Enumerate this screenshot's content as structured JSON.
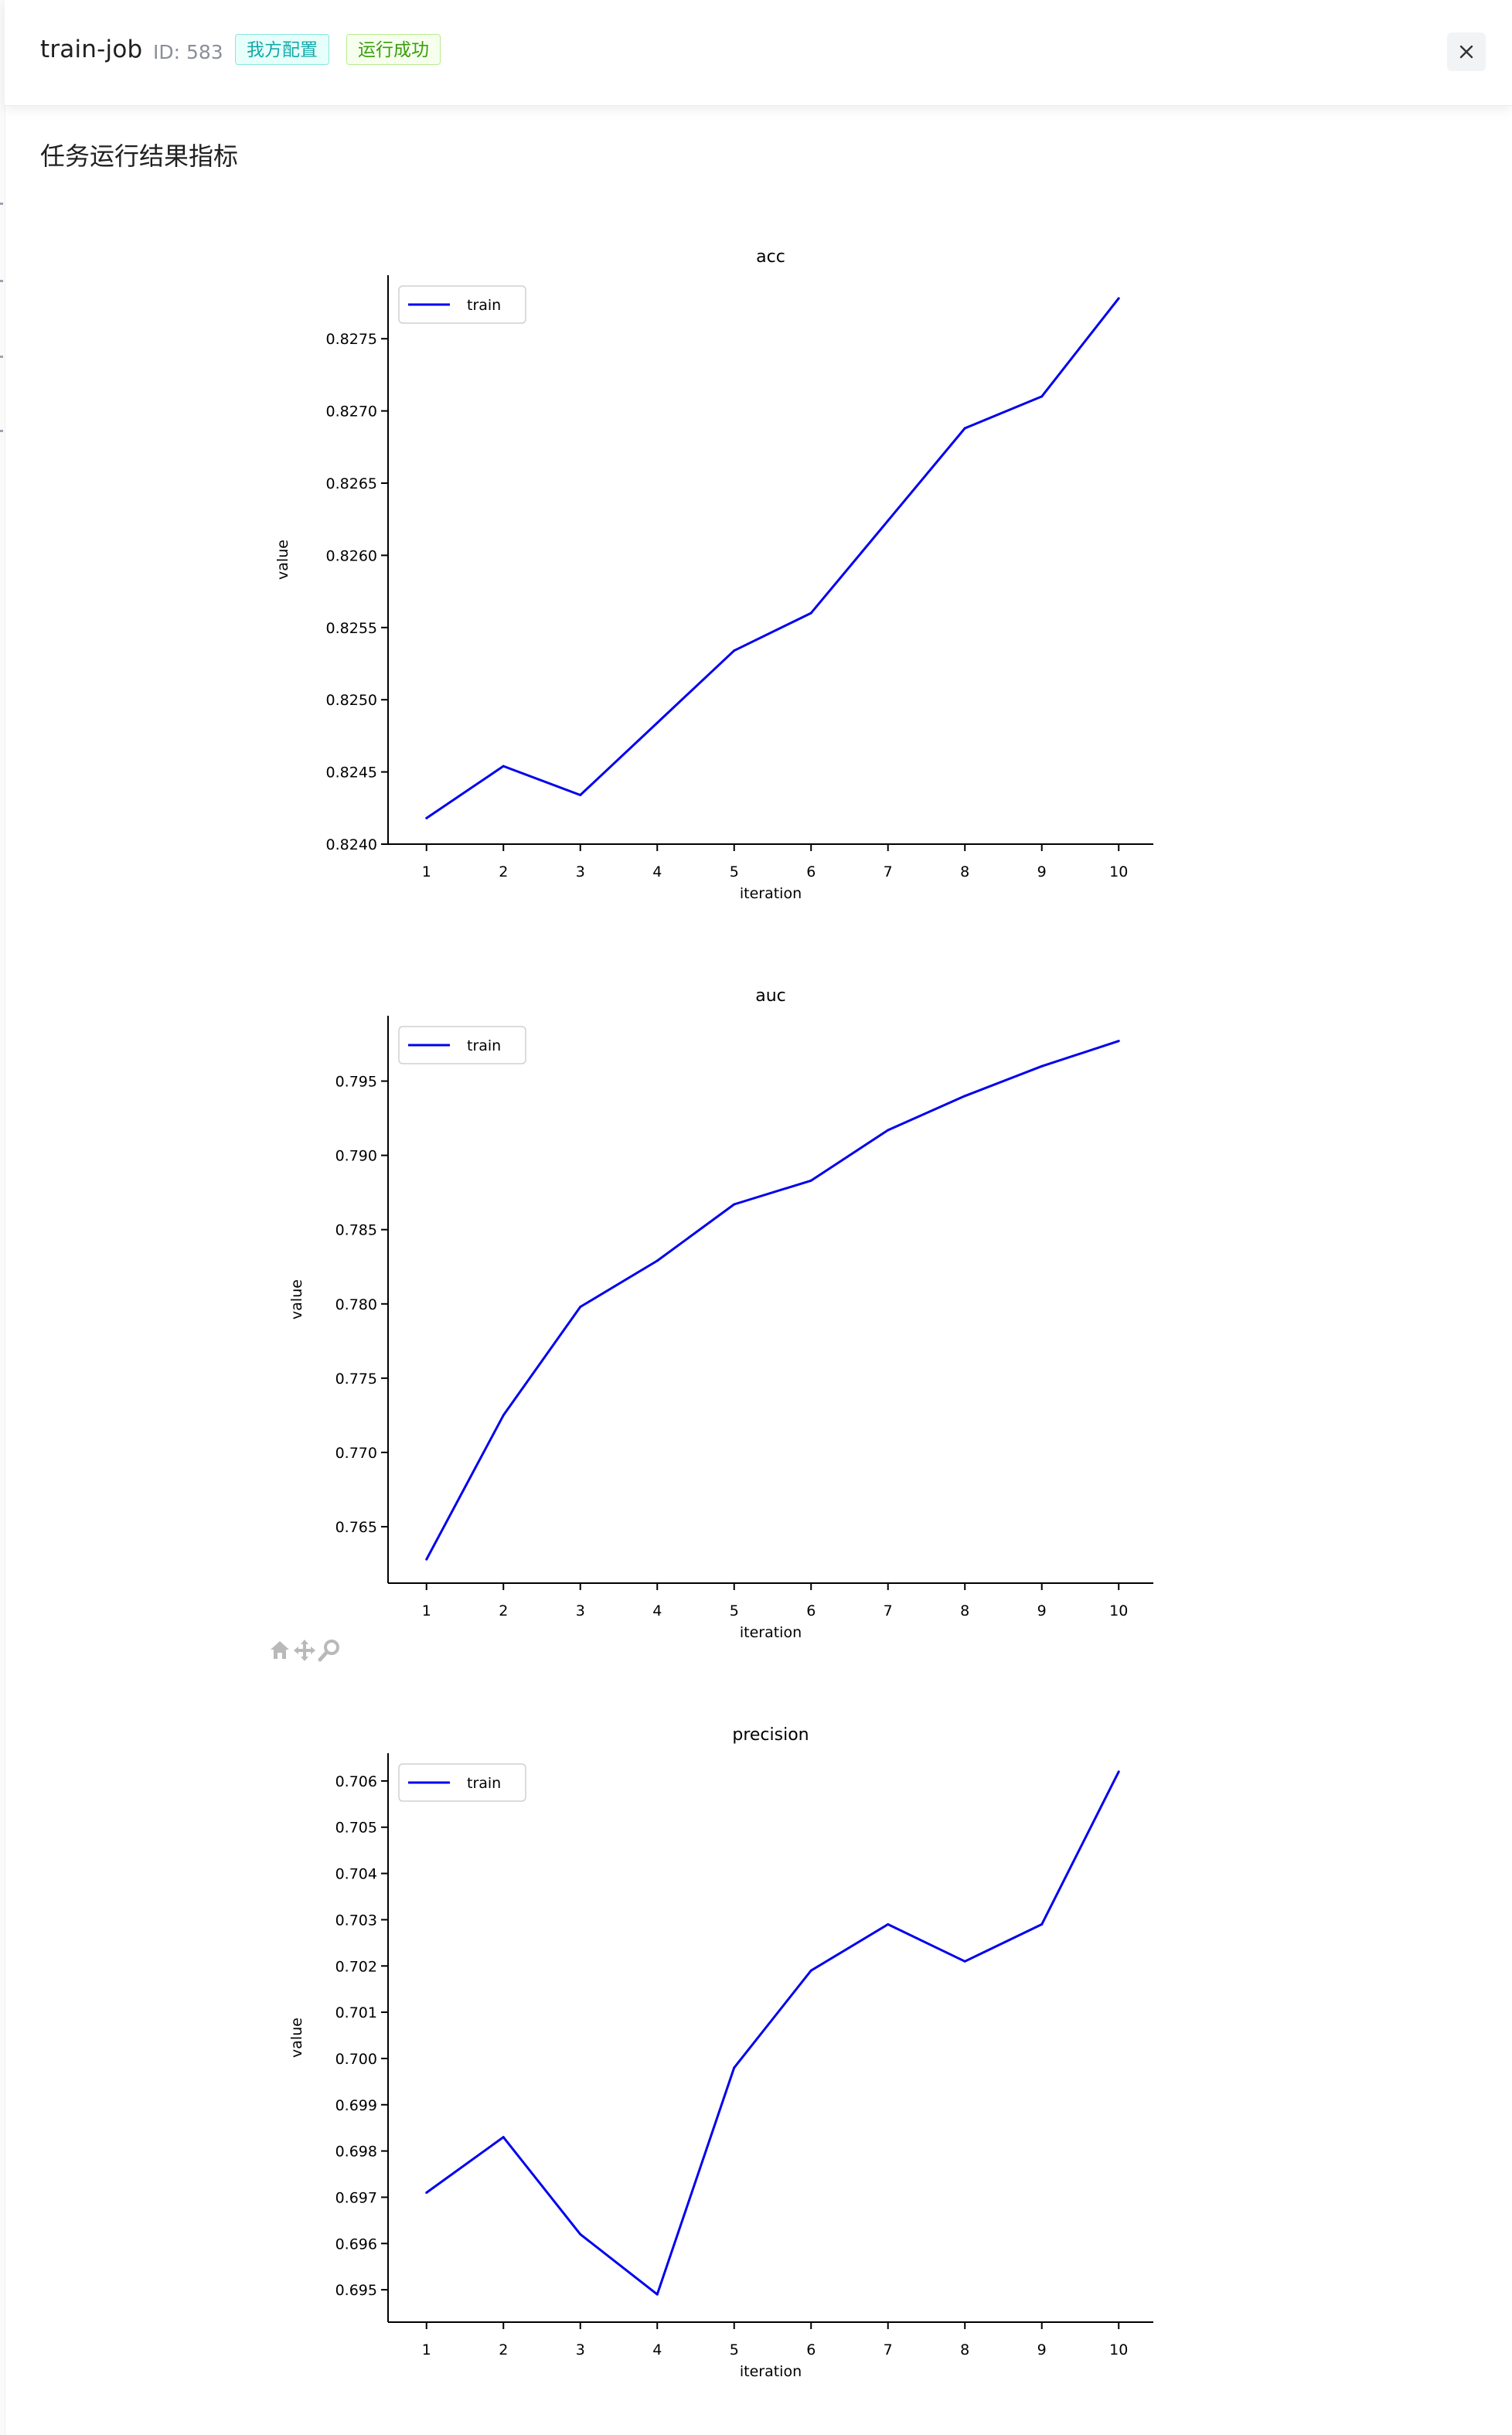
{
  "header": {
    "title": "train-job",
    "id_label": "ID: 583",
    "tags": [
      "我方配置",
      "运行成功"
    ],
    "close_icon": "close-icon"
  },
  "section_title": "任务运行结果指标",
  "toolbar": {
    "icons": [
      "home-icon",
      "move-icon",
      "zoom-icon"
    ]
  },
  "colors": {
    "line": "#0000ee",
    "tag_cyan": "#13a8a8",
    "tag_green": "#389e0d"
  },
  "chart_data": [
    {
      "type": "line",
      "title": "acc",
      "xlabel": "iteration",
      "ylabel": "value",
      "x": [
        1,
        2,
        3,
        4,
        5,
        6,
        7,
        8,
        9,
        10
      ],
      "xlim": [
        0.5,
        10.45
      ],
      "ylim": [
        0.824,
        0.82794
      ],
      "yticks": [
        0.824,
        0.8245,
        0.825,
        0.8255,
        0.826,
        0.8265,
        0.827,
        0.8275
      ],
      "ytick_labels": [
        "0.8240",
        "0.8245",
        "0.8250",
        "0.8255",
        "0.8260",
        "0.8265",
        "0.8270",
        "0.8275"
      ],
      "legend": "upper-left",
      "series": [
        {
          "name": "train",
          "values": [
            0.82418,
            0.82454,
            0.82434,
            0.82484,
            0.82534,
            0.8256,
            0.82624,
            0.82688,
            0.8271,
            0.82778
          ]
        }
      ]
    },
    {
      "type": "line",
      "title": "auc",
      "xlabel": "iteration",
      "ylabel": "value",
      "x": [
        1,
        2,
        3,
        4,
        5,
        6,
        7,
        8,
        9,
        10
      ],
      "xlim": [
        0.5,
        10.45
      ],
      "ylim": [
        0.7612,
        0.7994
      ],
      "yticks": [
        0.765,
        0.77,
        0.775,
        0.78,
        0.785,
        0.79,
        0.795
      ],
      "ytick_labels": [
        "0.765",
        "0.770",
        "0.775",
        "0.780",
        "0.785",
        "0.790",
        "0.795"
      ],
      "legend": "upper-left",
      "series": [
        {
          "name": "train",
          "values": [
            0.7628,
            0.7725,
            0.7798,
            0.7829,
            0.7867,
            0.7883,
            0.7917,
            0.794,
            0.796,
            0.7977
          ]
        }
      ]
    },
    {
      "type": "line",
      "title": "precision",
      "xlabel": "iteration",
      "ylabel": "value",
      "x": [
        1,
        2,
        3,
        4,
        5,
        6,
        7,
        8,
        9,
        10
      ],
      "xlim": [
        0.5,
        10.45
      ],
      "ylim": [
        0.6943,
        0.7066
      ],
      "yticks": [
        0.695,
        0.696,
        0.697,
        0.698,
        0.699,
        0.7,
        0.701,
        0.702,
        0.703,
        0.704,
        0.705,
        0.706
      ],
      "ytick_labels": [
        "0.695",
        "0.696",
        "0.697",
        "0.698",
        "0.699",
        "0.700",
        "0.701",
        "0.702",
        "0.703",
        "0.704",
        "0.705",
        "0.706"
      ],
      "legend": "upper-left",
      "series": [
        {
          "name": "train",
          "values": [
            0.6971,
            0.6983,
            0.6962,
            0.6949,
            0.6998,
            0.7019,
            0.7029,
            0.7021,
            0.7029,
            0.7062
          ]
        }
      ]
    }
  ]
}
